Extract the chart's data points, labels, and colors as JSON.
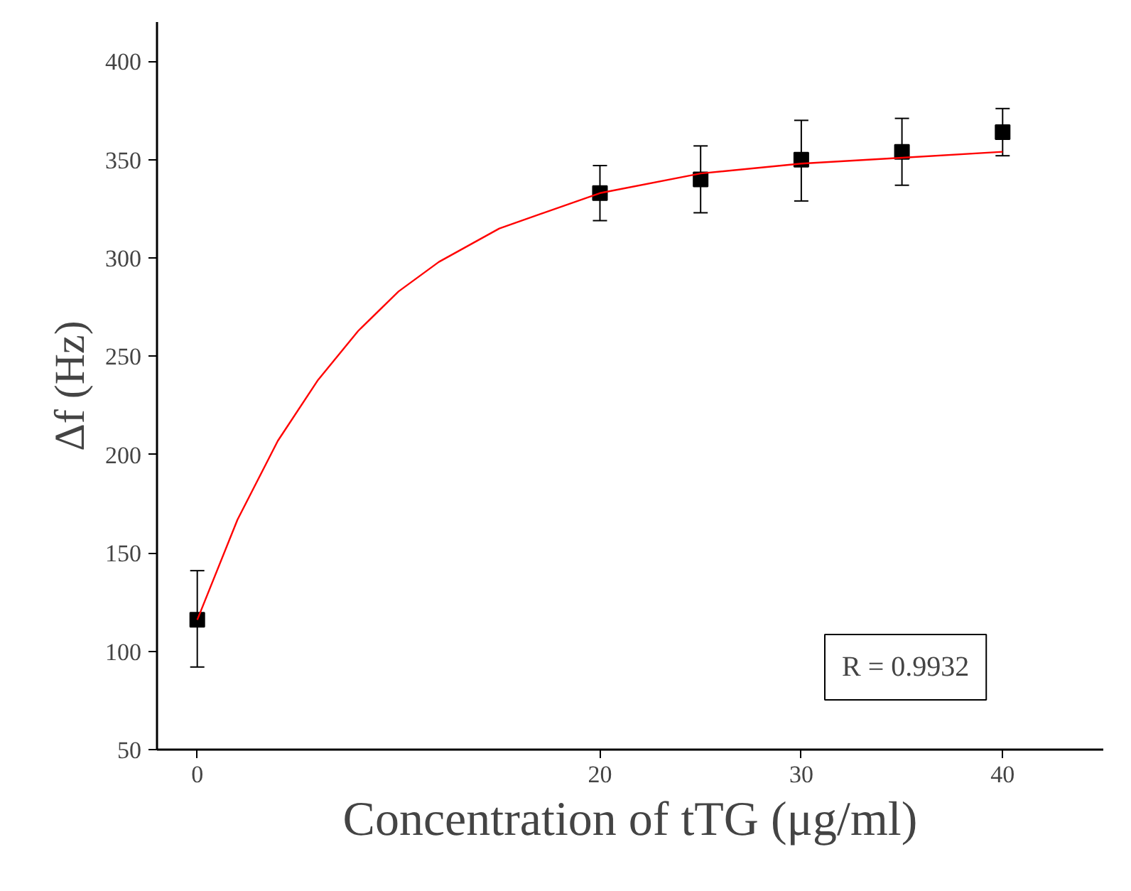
{
  "chart_data": {
    "type": "scatter",
    "xlabel": "Concentration of tTG (μg/ml)",
    "ylabel": "Δf (Hz)",
    "x": [
      0,
      20,
      25,
      30,
      35,
      40
    ],
    "series": [
      {
        "color": "#000000",
        "marker": "square",
        "values": [
          116,
          333,
          340,
          350,
          354,
          364
        ],
        "errors": [
          [
            92,
            141
          ],
          [
            319,
            347
          ],
          [
            323,
            357
          ],
          [
            329,
            370
          ],
          [
            337,
            371
          ],
          [
            352,
            376
          ]
        ]
      },
      {
        "type": "line",
        "color": "#ff0000",
        "marker": "none",
        "x": [
          0,
          2,
          4,
          6,
          8,
          10,
          12,
          15,
          20,
          25,
          30,
          35,
          40
        ],
        "values": [
          116,
          167,
          207,
          238,
          263,
          283,
          298,
          315,
          333,
          343,
          348,
          351,
          354
        ]
      }
    ],
    "xlim": [
      -2,
      45
    ],
    "xticks": [
      0,
      20,
      30,
      40
    ],
    "ylim": [
      50,
      420
    ],
    "yticks": [
      50,
      100,
      150,
      200,
      250,
      300,
      350,
      400
    ],
    "grid": false,
    "annotations": [
      "R = 0.9932"
    ]
  }
}
